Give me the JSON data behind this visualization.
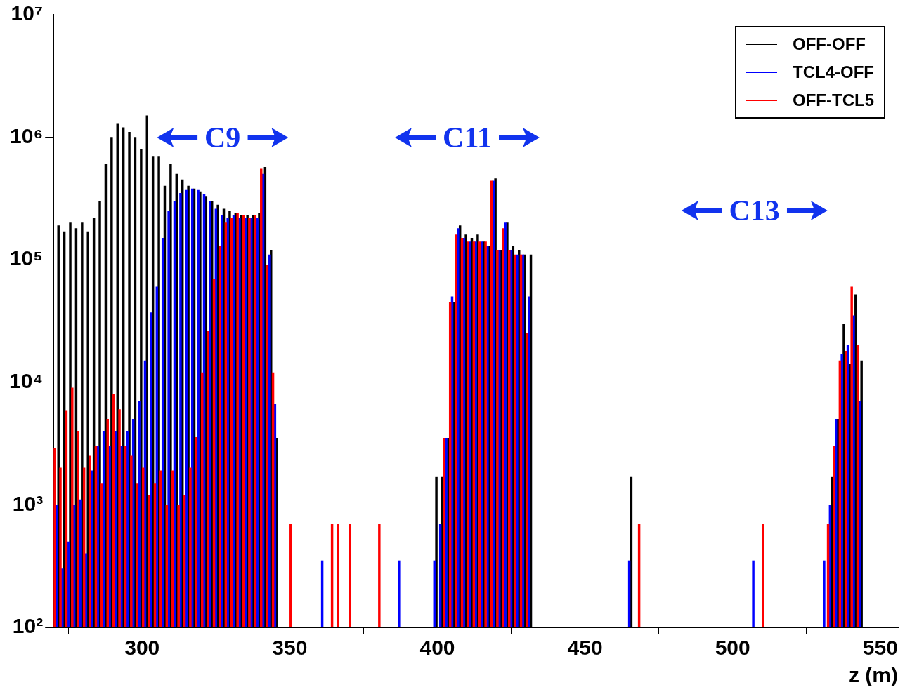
{
  "chart_data": {
    "type": "histogram",
    "xlabel": "z (m)",
    "bins": [
      270,
      272,
      274,
      276,
      278,
      280,
      282,
      284,
      286,
      288,
      290,
      292,
      294,
      296,
      298,
      300,
      302,
      304,
      306,
      308,
      310,
      312,
      314,
      316,
      318,
      320,
      322,
      324,
      326,
      328,
      330,
      332,
      334,
      336,
      338,
      340,
      342,
      344,
      346,
      348,
      350,
      352,
      354,
      356,
      358,
      360,
      362,
      364,
      366,
      368,
      370,
      372,
      374,
      376,
      378,
      380,
      382,
      384,
      386,
      388,
      390,
      392,
      394,
      396,
      398,
      400,
      402,
      404,
      406,
      408,
      410,
      412,
      414,
      416,
      418,
      420,
      422,
      424,
      426,
      428,
      430,
      432,
      434,
      436,
      438,
      440,
      442,
      444,
      446,
      448,
      450,
      452,
      454,
      456,
      458,
      460,
      462,
      464,
      466,
      468,
      470,
      472,
      474,
      476,
      478,
      480,
      482,
      484,
      486,
      488,
      490,
      492,
      494,
      496,
      498,
      500,
      502,
      504,
      506,
      508,
      510,
      512,
      514,
      516,
      518,
      520,
      522,
      524,
      526,
      528,
      530,
      532,
      534,
      536,
      538,
      540,
      542,
      544,
      546,
      548,
      550,
      552,
      554,
      556
    ],
    "series": [
      {
        "name": "OFF-OFF",
        "color": "#000000",
        "values": [
          190000,
          170000,
          200000,
          180000,
          200000,
          170000,
          220000,
          300000,
          600000,
          1000000,
          1300000,
          1200000,
          1100000,
          1000000,
          800000,
          1500000,
          700000,
          700000,
          400000,
          600000,
          500000,
          450000,
          400000,
          380000,
          360000,
          330000,
          300000,
          280000,
          260000,
          250000,
          240000,
          230000,
          230000,
          230000,
          240000,
          570000,
          120000,
          3500,
          null,
          null,
          null,
          null,
          null,
          null,
          null,
          null,
          null,
          null,
          null,
          null,
          null,
          null,
          null,
          null,
          null,
          null,
          null,
          null,
          null,
          null,
          null,
          null,
          null,
          null,
          1700,
          1700,
          3500,
          45000,
          190000,
          160000,
          150000,
          160000,
          140000,
          130000,
          460000,
          120000,
          200000,
          130000,
          120000,
          110000,
          110000,
          null,
          null,
          null,
          null,
          null,
          null,
          null,
          null,
          null,
          null,
          null,
          null,
          null,
          null,
          null,
          null,
          1700,
          null,
          null,
          null,
          null,
          null,
          null,
          null,
          null,
          null,
          null,
          null,
          null,
          null,
          null,
          null,
          null,
          null,
          null,
          null,
          null,
          null,
          null,
          null,
          null,
          null,
          null,
          null,
          null,
          null,
          null,
          null,
          null,
          null,
          1700,
          5000,
          30000,
          14000,
          52000,
          15000,
          null,
          null,
          null,
          null,
          null,
          null
        ]
      },
      {
        "name": "TCL4-OFF",
        "color": "#0000ff",
        "values": [
          1000,
          300,
          500,
          1000,
          1100,
          400,
          1900,
          3000,
          4000,
          3000,
          4000,
          3000,
          4000,
          5000,
          7000,
          15000,
          37000,
          60000,
          150000,
          250000,
          300000,
          350000,
          370000,
          380000,
          370000,
          340000,
          300000,
          260000,
          230000,
          220000,
          230000,
          220000,
          220000,
          220000,
          220000,
          500000,
          110000,
          6600,
          null,
          null,
          null,
          null,
          null,
          null,
          null,
          350,
          null,
          null,
          null,
          null,
          null,
          null,
          null,
          null,
          null,
          null,
          null,
          null,
          350,
          null,
          null,
          null,
          null,
          null,
          350,
          700,
          3500,
          50000,
          180000,
          150000,
          140000,
          140000,
          140000,
          130000,
          440000,
          120000,
          200000,
          120000,
          110000,
          110000,
          50000,
          null,
          null,
          null,
          null,
          null,
          null,
          null,
          null,
          null,
          null,
          null,
          null,
          null,
          null,
          null,
          null,
          350,
          null,
          null,
          null,
          null,
          null,
          null,
          null,
          null,
          null,
          null,
          null,
          null,
          null,
          null,
          null,
          null,
          null,
          null,
          null,
          null,
          350,
          null,
          null,
          null,
          null,
          null,
          null,
          null,
          null,
          null,
          null,
          null,
          350,
          1000,
          5000,
          17000,
          20000,
          35000,
          7000,
          null,
          null,
          null,
          null,
          null,
          null
        ]
      },
      {
        "name": "OFF-TCL5",
        "color": "#ff0000",
        "values": [
          2900,
          2000,
          5900,
          9000,
          4000,
          2000,
          2500,
          3000,
          1500,
          5000,
          8000,
          6000,
          3000,
          2500,
          1500,
          2000,
          1200,
          1500,
          1900,
          1000,
          1900,
          1000,
          1200,
          2000,
          3600,
          12000,
          26000,
          69000,
          130000,
          200000,
          220000,
          240000,
          230000,
          220000,
          230000,
          550000,
          90000,
          12000,
          null,
          null,
          700,
          null,
          null,
          null,
          null,
          null,
          null,
          700,
          700,
          null,
          700,
          null,
          null,
          null,
          null,
          700,
          null,
          null,
          null,
          null,
          null,
          null,
          null,
          null,
          null,
          null,
          3500,
          45000,
          160000,
          150000,
          140000,
          140000,
          140000,
          140000,
          440000,
          120000,
          180000,
          120000,
          110000,
          110000,
          25000,
          null,
          null,
          null,
          null,
          null,
          null,
          null,
          null,
          null,
          null,
          null,
          null,
          null,
          null,
          null,
          null,
          null,
          null,
          700,
          null,
          null,
          null,
          null,
          null,
          null,
          null,
          null,
          null,
          null,
          null,
          null,
          null,
          null,
          null,
          null,
          null,
          null,
          null,
          null,
          700,
          null,
          null,
          null,
          null,
          null,
          null,
          null,
          null,
          null,
          null,
          700,
          3000,
          15000,
          18000,
          60000,
          20000,
          null,
          null,
          null,
          null,
          null,
          null
        ]
      }
    ],
    "xlim": [
      270,
      556
    ],
    "xticks": [
      300,
      350,
      400,
      450,
      500,
      550
    ],
    "ylim": [
      100,
      10000000
    ],
    "yticks": [
      {
        "value": 100,
        "label": "10²"
      },
      {
        "value": 1000,
        "label": "10³"
      },
      {
        "value": 10000,
        "label": "10⁴"
      },
      {
        "value": 100000,
        "label": "10⁵"
      },
      {
        "value": 1000000,
        "label": "10⁶"
      },
      {
        "value": 10000000,
        "label": "10⁷"
      }
    ],
    "log": "y",
    "grid": false,
    "legend": "top right",
    "annotations": [
      "C9",
      "C11",
      "C13"
    ]
  }
}
